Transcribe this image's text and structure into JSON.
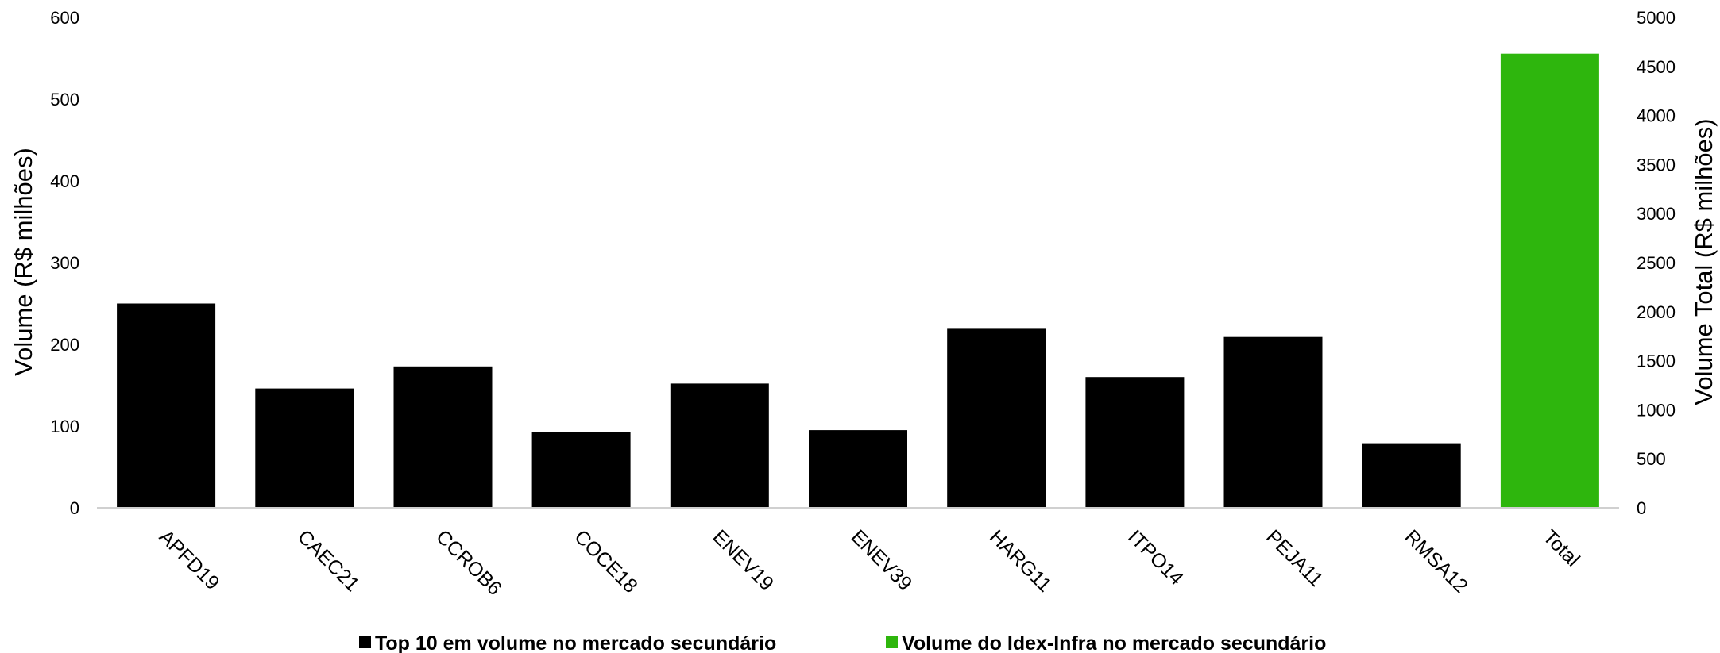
{
  "chart_data": {
    "type": "bar",
    "categories": [
      "APFD19",
      "CAEC21",
      "CCROB6",
      "COCE18",
      "ENEV19",
      "ENEV39",
      "HARG11",
      "ITPO14",
      "PEJA11",
      "RMSA12",
      "Total"
    ],
    "series": [
      {
        "name": "Top 10 em volume no mercado secundário",
        "color": "#000000",
        "axis": "left",
        "values": [
          250,
          146,
          173,
          93,
          152,
          95,
          219,
          160,
          209,
          79,
          null
        ]
      },
      {
        "name": "Volume do Idex-Infra no mercado secundário",
        "color": "#2eb60d",
        "axis": "right",
        "values": [
          null,
          null,
          null,
          null,
          null,
          null,
          null,
          null,
          null,
          null,
          4630
        ]
      }
    ],
    "ylabel": "Volume (R$ milhões)",
    "y2label": "Volume Total (R$ milhões)",
    "ylim": [
      0,
      600
    ],
    "y2lim": [
      0,
      5000
    ],
    "yticks": [
      0,
      100,
      200,
      300,
      400,
      500,
      600
    ],
    "y2ticks": [
      0,
      500,
      1000,
      1500,
      2000,
      2500,
      3000,
      3500,
      4000,
      4500,
      5000
    ],
    "grid": false,
    "legend_position": "bottom"
  }
}
